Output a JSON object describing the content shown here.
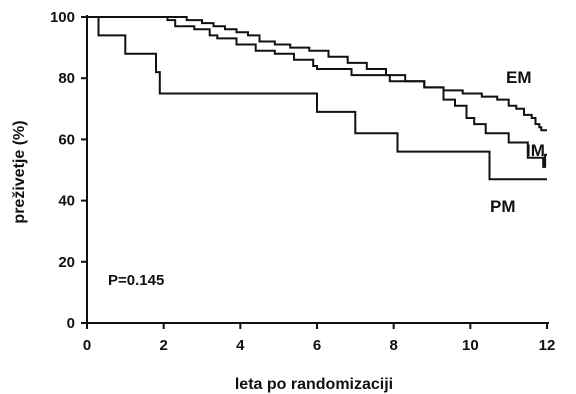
{
  "chart_data": {
    "type": "line",
    "title": "",
    "xlabel": "leta po randomizaciji",
    "ylabel": "preživetje (%)",
    "xlim": [
      0,
      12
    ],
    "ylim": [
      0,
      100
    ],
    "x_ticks": [
      0,
      2,
      4,
      6,
      8,
      10,
      12
    ],
    "y_ticks": [
      0,
      20,
      40,
      60,
      80,
      100
    ],
    "grid": false,
    "step": true,
    "annotation": "P=0.145",
    "series": [
      {
        "name": "EM",
        "points": [
          [
            0,
            100
          ],
          [
            2.2,
            100
          ],
          [
            2.6,
            99
          ],
          [
            3.0,
            98
          ],
          [
            3.3,
            97
          ],
          [
            3.6,
            96
          ],
          [
            3.9,
            95
          ],
          [
            4.2,
            94
          ],
          [
            4.5,
            92
          ],
          [
            4.9,
            91
          ],
          [
            5.3,
            90
          ],
          [
            5.8,
            89
          ],
          [
            6.3,
            87
          ],
          [
            6.8,
            85
          ],
          [
            7.3,
            83
          ],
          [
            7.8,
            81
          ],
          [
            8.3,
            79
          ],
          [
            8.8,
            77
          ],
          [
            9.3,
            76
          ],
          [
            9.8,
            75
          ],
          [
            10.3,
            74
          ],
          [
            10.7,
            73
          ],
          [
            11.0,
            71
          ],
          [
            11.2,
            70
          ],
          [
            11.4,
            68
          ],
          [
            11.6,
            67
          ],
          [
            11.7,
            65
          ],
          [
            11.8,
            64
          ],
          [
            11.85,
            63
          ],
          [
            12.0,
            63
          ]
        ]
      },
      {
        "name": "IM",
        "points": [
          [
            0,
            100
          ],
          [
            1.9,
            100
          ],
          [
            2.1,
            99
          ],
          [
            2.3,
            97
          ],
          [
            2.8,
            96
          ],
          [
            3.2,
            94
          ],
          [
            3.4,
            93
          ],
          [
            3.9,
            91
          ],
          [
            4.4,
            89
          ],
          [
            4.9,
            88
          ],
          [
            5.4,
            86
          ],
          [
            5.9,
            84
          ],
          [
            6.0,
            83
          ],
          [
            6.9,
            81
          ],
          [
            7.9,
            79
          ],
          [
            8.8,
            77
          ],
          [
            9.3,
            73
          ],
          [
            9.6,
            71
          ],
          [
            9.9,
            67
          ],
          [
            10.1,
            65
          ],
          [
            10.4,
            62
          ],
          [
            11.0,
            59
          ],
          [
            11.5,
            54
          ],
          [
            11.9,
            51
          ],
          [
            11.95,
            55
          ],
          [
            12.0,
            55
          ]
        ]
      },
      {
        "name": "PM",
        "points": [
          [
            0,
            100
          ],
          [
            0.3,
            100
          ],
          [
            0.3,
            94
          ],
          [
            1.0,
            94
          ],
          [
            1.0,
            88
          ],
          [
            1.8,
            88
          ],
          [
            1.8,
            82
          ],
          [
            1.9,
            82
          ],
          [
            1.9,
            75
          ],
          [
            6.0,
            75
          ],
          [
            6.0,
            69
          ],
          [
            7.0,
            69
          ],
          [
            7.0,
            62
          ],
          [
            8.1,
            62
          ],
          [
            8.1,
            56
          ],
          [
            10.5,
            56
          ],
          [
            10.5,
            47
          ],
          [
            12.0,
            47
          ]
        ]
      }
    ]
  }
}
